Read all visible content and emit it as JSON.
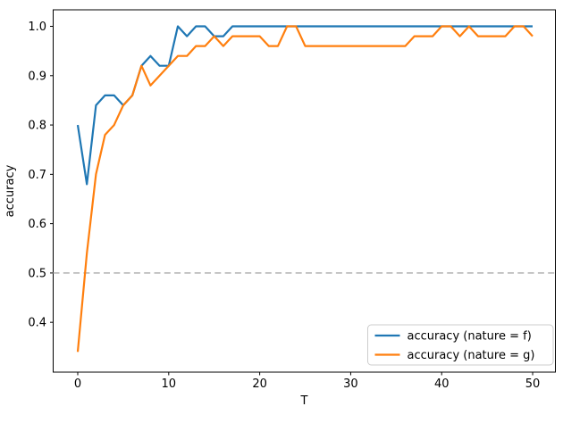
{
  "figure": {
    "background": "#ffffff",
    "spine_color": "#000000"
  },
  "chart_data": {
    "type": "line",
    "title": "",
    "xlabel": "T",
    "ylabel": "accuracy",
    "xlim": [
      -2.7,
      52.5
    ],
    "ylim": [
      0.299,
      1.0335
    ],
    "grid": false,
    "x_ticks": [
      0,
      10,
      20,
      30,
      40,
      50
    ],
    "x_tick_labels": [
      "0",
      "10",
      "20",
      "30",
      "40",
      "50"
    ],
    "y_ticks": [
      0.4,
      0.5,
      0.6,
      0.7,
      0.8,
      0.9,
      1.0
    ],
    "y_tick_labels": [
      "0.4",
      "0.5",
      "0.6",
      "0.7",
      "0.8",
      "0.9",
      "1.0"
    ],
    "reference_line": {
      "y": 0.5,
      "style": "dashed",
      "color": "#bcbcbc"
    },
    "legend": {
      "position": "lower right",
      "border_color": "#cccccc",
      "background": "#ffffff"
    },
    "x": [
      0,
      1,
      2,
      3,
      4,
      5,
      6,
      7,
      8,
      9,
      10,
      11,
      12,
      13,
      14,
      15,
      16,
      17,
      18,
      19,
      20,
      21,
      22,
      23,
      24,
      25,
      26,
      27,
      28,
      29,
      30,
      31,
      32,
      33,
      34,
      35,
      36,
      37,
      38,
      39,
      40,
      41,
      42,
      43,
      44,
      45,
      46,
      47,
      48,
      49,
      50
    ],
    "series": [
      {
        "name": "accuracy (nature = f)",
        "color": "#1f77b4",
        "values": [
          0.8,
          0.68,
          0.84,
          0.86,
          0.86,
          0.84,
          0.86,
          0.92,
          0.94,
          0.92,
          0.92,
          1.0,
          0.98,
          1.0,
          1.0,
          0.98,
          0.98,
          1.0,
          1.0,
          1.0,
          1.0,
          1.0,
          1.0,
          1.0,
          1.0,
          1.0,
          1.0,
          1.0,
          1.0,
          1.0,
          1.0,
          1.0,
          1.0,
          1.0,
          1.0,
          1.0,
          1.0,
          1.0,
          1.0,
          1.0,
          1.0,
          1.0,
          1.0,
          1.0,
          1.0,
          1.0,
          1.0,
          1.0,
          1.0,
          1.0,
          1.0
        ]
      },
      {
        "name": "accuracy (nature = g)",
        "color": "#ff7f0e",
        "values": [
          0.34,
          0.54,
          0.7,
          0.78,
          0.8,
          0.84,
          0.86,
          0.92,
          0.88,
          0.9,
          0.92,
          0.94,
          0.94,
          0.96,
          0.96,
          0.98,
          0.96,
          0.98,
          0.98,
          0.98,
          0.98,
          0.96,
          0.96,
          1.0,
          1.0,
          0.96,
          0.96,
          0.96,
          0.96,
          0.96,
          0.96,
          0.96,
          0.96,
          0.96,
          0.96,
          0.96,
          0.96,
          0.98,
          0.98,
          0.98,
          1.0,
          1.0,
          0.98,
          1.0,
          0.98,
          0.98,
          0.98,
          0.98,
          1.0,
          1.0,
          0.98
        ]
      }
    ]
  }
}
